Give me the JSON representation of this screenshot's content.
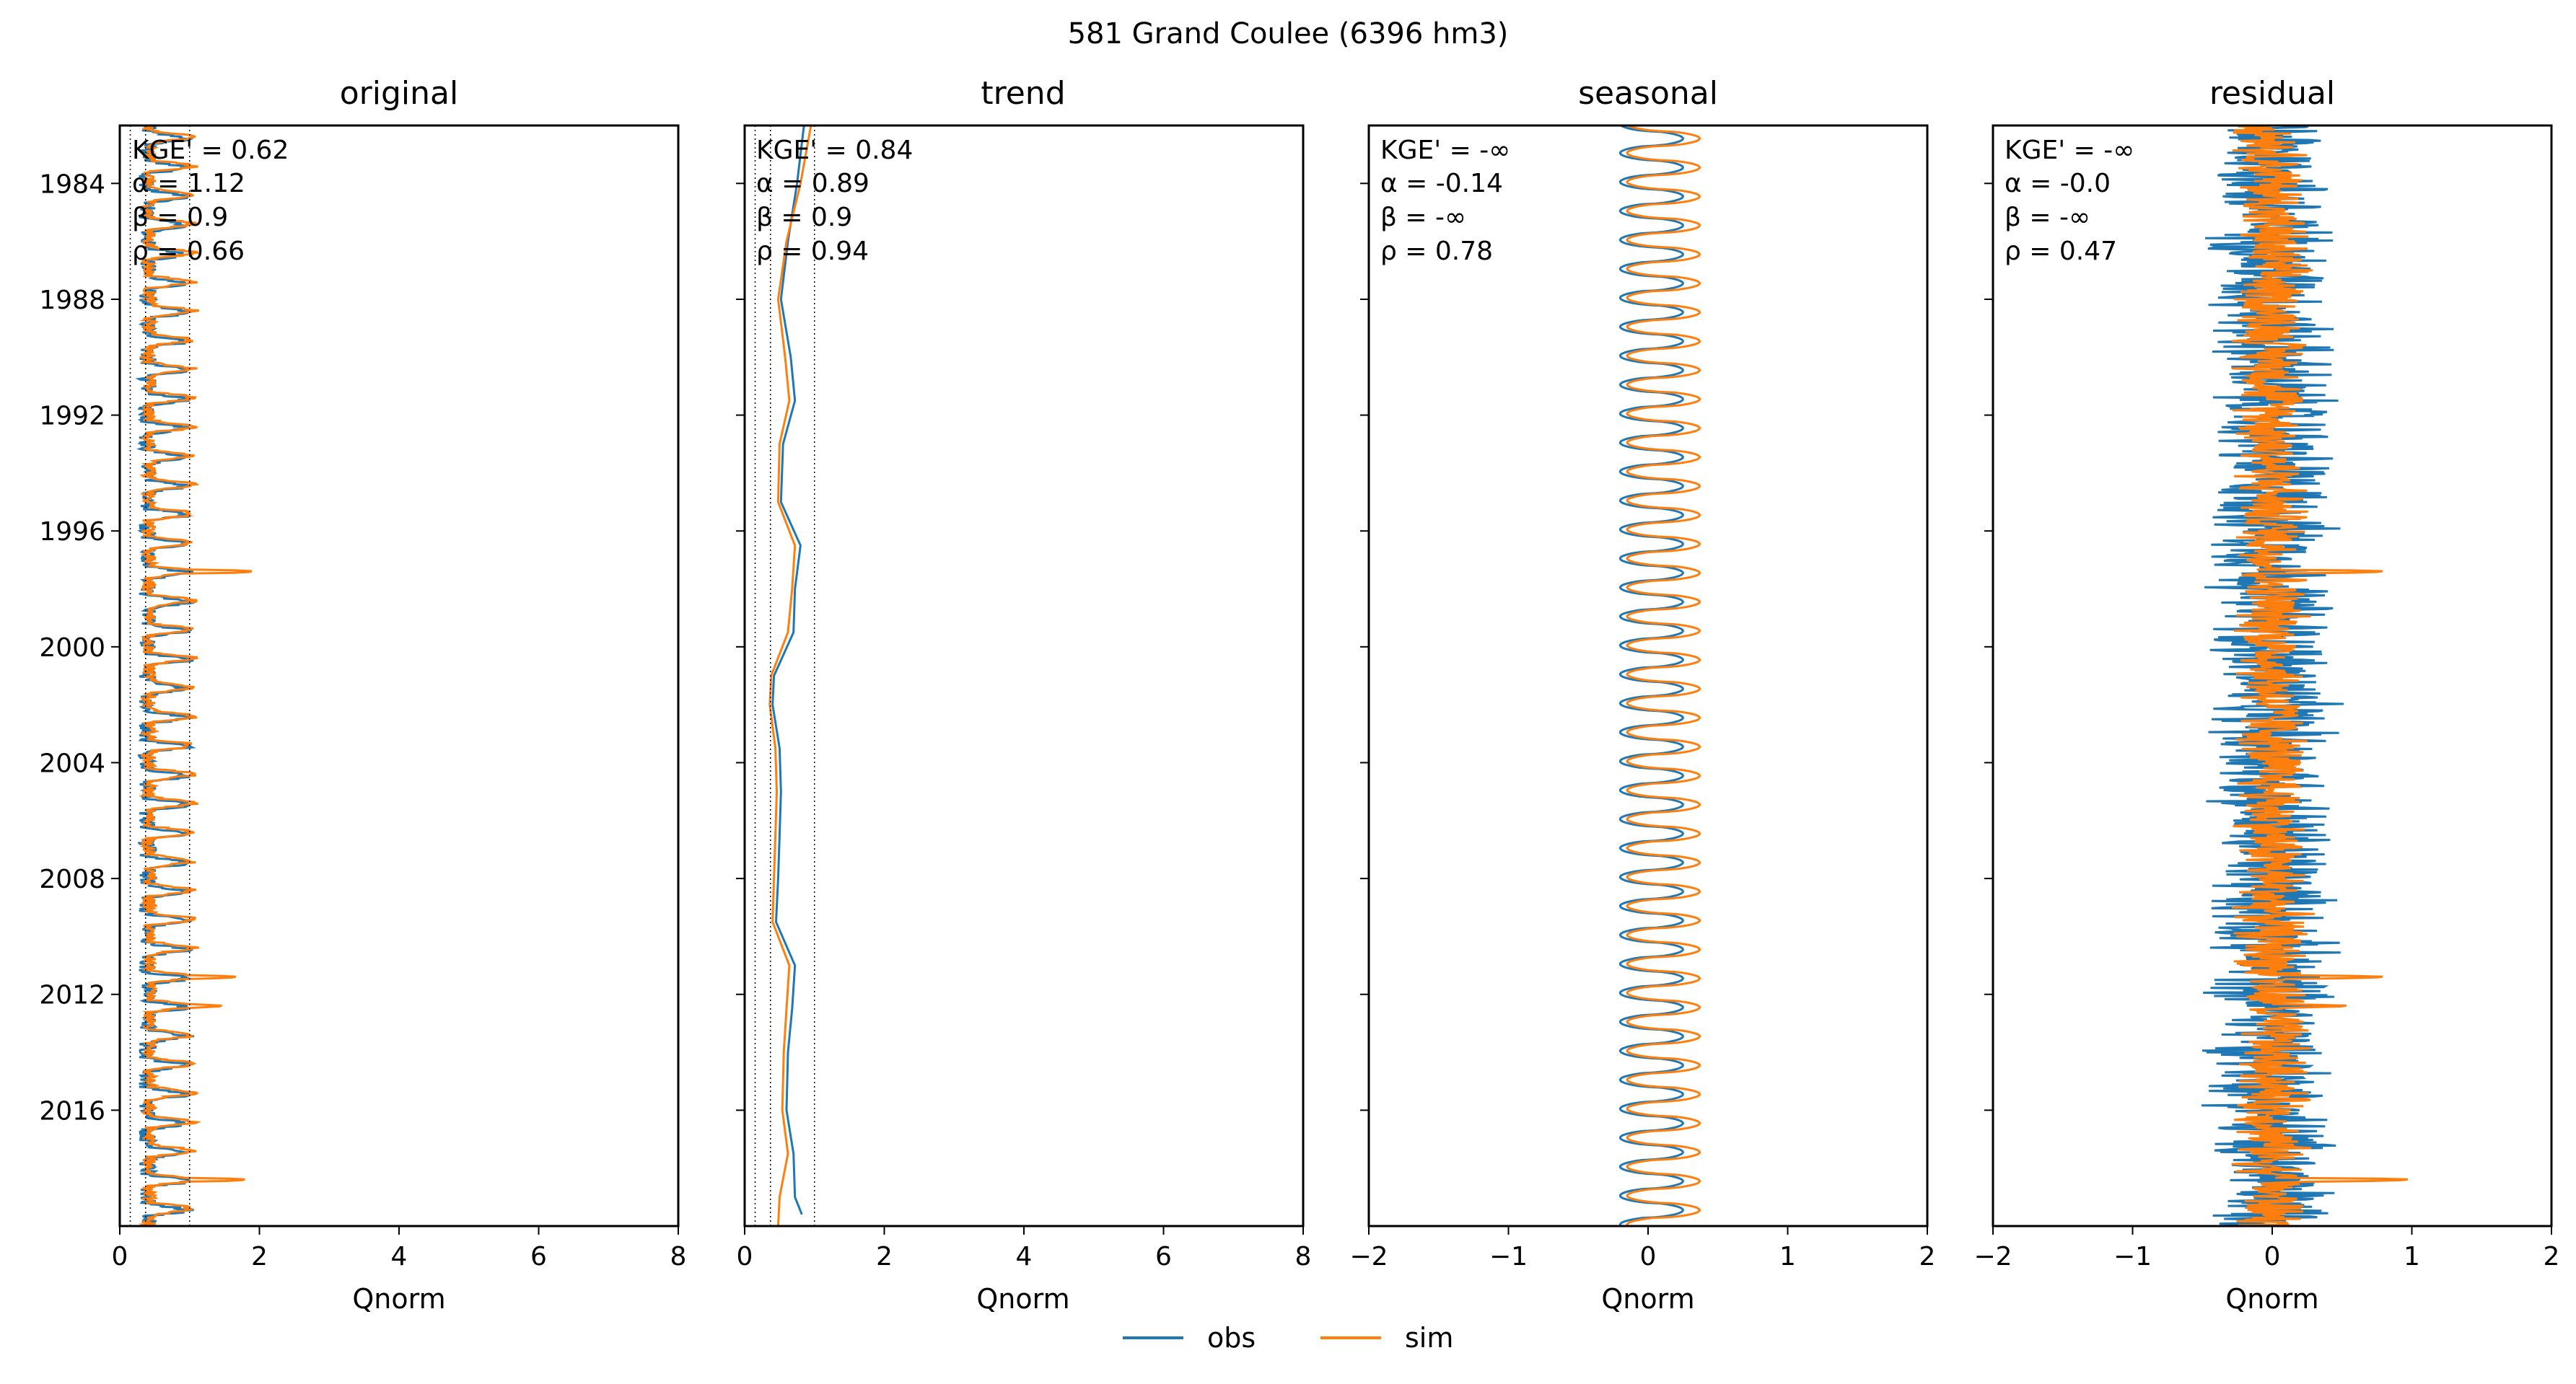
{
  "figure": {
    "suptitle": "581  Grand Coulee (6396 hm3)",
    "legend": {
      "position": "bottom-center",
      "entries": [
        {
          "label": "obs",
          "color": "#1f77b4"
        },
        {
          "label": "sim",
          "color": "#ff7f0e"
        }
      ]
    },
    "colors": {
      "obs": "#1f77b4",
      "sim": "#ff7f0e",
      "reference_lines": "#000000"
    }
  },
  "chart_data": [
    {
      "type": "line",
      "title": "original",
      "xlabel": "Qnorm",
      "ylabel": "",
      "orientation": "vertical-time",
      "xlim": [
        0,
        8
      ],
      "xticks": [
        "0",
        "2",
        "4",
        "6",
        "8"
      ],
      "ylim": [
        "1982-01",
        "2020-01"
      ],
      "yticks": [
        "1984",
        "1988",
        "1992",
        "1996",
        "2000",
        "2004",
        "2008",
        "2012",
        "2016"
      ],
      "reference_lines_x": [
        0.15,
        0.37,
        1.0
      ],
      "metrics": [
        "KGE' = 0.62",
        "α = 1.12",
        "β = 0.9",
        "ρ = 0.66"
      ],
      "series": [
        {
          "name": "obs",
          "baseline": 0.4,
          "amplitude": 0.55,
          "noise": 0.25,
          "phase": 0.45
        },
        {
          "name": "sim",
          "baseline": 0.42,
          "amplitude": 0.62,
          "noise": 0.2,
          "phase": 0.4,
          "peaks": [
            {
              "t": 1997.4,
              "x": 1.98
            },
            {
              "t": 2011.4,
              "x": 1.75
            },
            {
              "t": 2012.4,
              "x": 1.55
            },
            {
              "t": 2018.4,
              "x": 1.88
            }
          ]
        }
      ]
    },
    {
      "type": "line",
      "title": "trend",
      "xlabel": "Qnorm",
      "ylabel": "",
      "orientation": "vertical-time",
      "xlim": [
        0,
        8
      ],
      "xticks": [
        "0",
        "2",
        "4",
        "6",
        "8"
      ],
      "ylim": [
        "1982-01",
        "2020-01"
      ],
      "yticks": [],
      "reference_lines_x": [
        0.15,
        0.37,
        1.0
      ],
      "metrics": [
        "KGE' = 0.84",
        "α = 0.89",
        "β = 0.9",
        "ρ = 0.94"
      ],
      "series": [
        {
          "name": "obs",
          "points": [
            [
              1982.0,
              0.85
            ],
            [
              1984.0,
              0.75
            ],
            [
              1986.0,
              0.62
            ],
            [
              1988.0,
              0.52
            ],
            [
              1990.0,
              0.66
            ],
            [
              1991.5,
              0.72
            ],
            [
              1993.0,
              0.55
            ],
            [
              1995.0,
              0.52
            ],
            [
              1996.5,
              0.8
            ],
            [
              1998.0,
              0.72
            ],
            [
              1999.5,
              0.7
            ],
            [
              2001.0,
              0.42
            ],
            [
              2002.0,
              0.4
            ],
            [
              2003.5,
              0.5
            ],
            [
              2005.0,
              0.52
            ],
            [
              2006.5,
              0.5
            ],
            [
              2008.0,
              0.48
            ],
            [
              2009.5,
              0.45
            ],
            [
              2011.0,
              0.72
            ],
            [
              2012.5,
              0.68
            ],
            [
              2014.0,
              0.62
            ],
            [
              2016.0,
              0.6
            ],
            [
              2017.5,
              0.7
            ],
            [
              2019.0,
              0.72
            ],
            [
              2019.6,
              0.82
            ]
          ]
        },
        {
          "name": "sim",
          "points": [
            [
              1982.0,
              0.95
            ],
            [
              1984.0,
              0.8
            ],
            [
              1986.0,
              0.6
            ],
            [
              1988.0,
              0.48
            ],
            [
              1990.0,
              0.58
            ],
            [
              1991.5,
              0.64
            ],
            [
              1993.0,
              0.5
            ],
            [
              1995.0,
              0.48
            ],
            [
              1996.5,
              0.72
            ],
            [
              1998.0,
              0.68
            ],
            [
              1999.5,
              0.62
            ],
            [
              2001.0,
              0.38
            ],
            [
              2002.0,
              0.36
            ],
            [
              2003.5,
              0.44
            ],
            [
              2005.0,
              0.46
            ],
            [
              2006.5,
              0.44
            ],
            [
              2008.0,
              0.42
            ],
            [
              2009.5,
              0.4
            ],
            [
              2011.0,
              0.64
            ],
            [
              2012.5,
              0.6
            ],
            [
              2014.0,
              0.56
            ],
            [
              2016.0,
              0.54
            ],
            [
              2017.5,
              0.62
            ],
            [
              2019.0,
              0.5
            ],
            [
              2020.0,
              0.48
            ]
          ]
        }
      ]
    },
    {
      "type": "line",
      "title": "seasonal",
      "xlabel": "Qnorm",
      "ylabel": "",
      "orientation": "vertical-time",
      "xlim": [
        -2,
        2
      ],
      "xticks": [
        "−2",
        "−1",
        "0",
        "1",
        "2"
      ],
      "ylim": [
        "1982-01",
        "2020-01"
      ],
      "yticks": [],
      "reference_lines_x": [],
      "metrics": [
        "KGE' = -∞",
        "α = -0.14",
        "β = -∞",
        "ρ = 0.78"
      ],
      "series": [
        {
          "name": "obs",
          "min": -0.2,
          "max": 0.25
        },
        {
          "name": "sim",
          "min": -0.15,
          "max": 0.37
        }
      ]
    },
    {
      "type": "line",
      "title": "residual",
      "xlabel": "Qnorm",
      "ylabel": "",
      "orientation": "vertical-time",
      "xlim": [
        -2,
        2
      ],
      "xticks": [
        "−2",
        "−1",
        "0",
        "1",
        "2"
      ],
      "ylim": [
        "1982-01",
        "2020-01"
      ],
      "yticks": [],
      "reference_lines_x": [],
      "metrics": [
        "KGE' = -∞",
        "α = -0.0",
        "β = -∞",
        "ρ = 0.47"
      ],
      "series": [
        {
          "name": "obs",
          "noise": 0.38
        },
        {
          "name": "sim",
          "noise": 0.22,
          "peaks": [
            {
              "t": 1997.4,
              "x": 0.88
            },
            {
              "t": 2011.4,
              "x": 0.88
            },
            {
              "t": 2012.4,
              "x": 0.62
            },
            {
              "t": 2018.4,
              "x": 1.06
            }
          ]
        }
      ]
    }
  ]
}
